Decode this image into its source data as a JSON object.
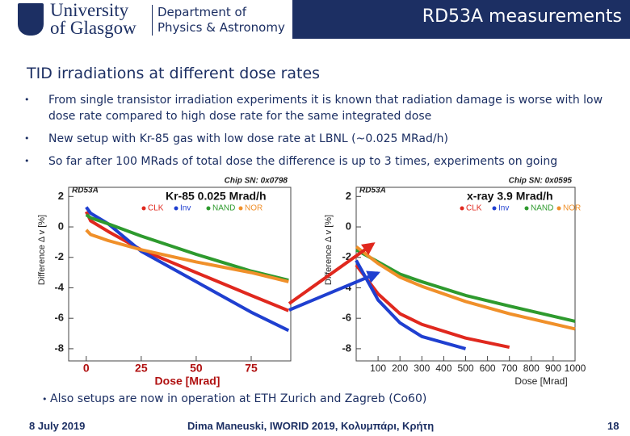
{
  "header": {
    "logo_line1": "University",
    "logo_line2": "of Glasgow",
    "department_line1": "Department of",
    "department_line2": "Physics & Astronomy",
    "title": "RD53A measurements"
  },
  "slide": {
    "title": "TID irradiations at different dose rates",
    "bullets": [
      "From single transistor irradiation experiments it is known that radiation damage is worse with low dose rate compared to high dose rate for the same integrated dose",
      "New setup with Kr-85 gas with low dose rate at LBNL (~0.025 MRad/h)",
      "So far after 100 MRads of total dose the difference is up to 3 times, experiments on going"
    ],
    "note": "Also setups are now in operation at ETH Zurich and Zagreb (Co60)"
  },
  "plots": [
    {
      "type": "line",
      "label": "RD53A",
      "chip": "Chip SN: 0x0798",
      "title": "Kr-85 0.025 Mrad/h",
      "ylabel": "Difference Δ v [%]",
      "xlabel": "Dose [Mrad]",
      "xlim": [
        -8,
        93
      ],
      "ylim": [
        -8.8,
        2.6
      ],
      "xticks": [
        0,
        25,
        50,
        75
      ],
      "yticks": [
        2,
        0,
        -2,
        -4,
        -6,
        -8
      ],
      "x": [
        0,
        2,
        10,
        25,
        50,
        75,
        92
      ],
      "series": [
        {
          "name": "CLK",
          "color": "#e0281e",
          "values": [
            1.0,
            0.4,
            -0.3,
            -1.5,
            -3.0,
            -4.5,
            -5.5
          ]
        },
        {
          "name": "Inv",
          "color": "#1f3fd0",
          "values": [
            1.3,
            0.9,
            0.2,
            -1.6,
            -3.6,
            -5.6,
            -6.8
          ]
        },
        {
          "name": "NAND",
          "color": "#2e9a2e",
          "values": [
            0.8,
            0.6,
            0.2,
            -0.6,
            -1.8,
            -2.9,
            -3.5
          ]
        },
        {
          "name": "NOR",
          "color": "#f0902a",
          "values": [
            -0.2,
            -0.5,
            -0.9,
            -1.5,
            -2.3,
            -3.0,
            -3.6
          ]
        }
      ]
    },
    {
      "type": "line",
      "label": "RD53A",
      "chip": "Chip SN: 0x0595",
      "title": "x-ray 3.9 Mrad/h",
      "ylabel": "Difference Δ v [%]",
      "xlabel": "Dose [Mrad]",
      "xlim": [
        0,
        1000
      ],
      "ylim": [
        -8.8,
        2.6
      ],
      "xticks": [
        100,
        200,
        300,
        400,
        500,
        600,
        700,
        800,
        900,
        1000
      ],
      "yticks": [
        2,
        0,
        -2,
        -4,
        -6,
        -8
      ],
      "x": [
        0,
        100,
        200,
        300,
        500,
        700,
        1000
      ],
      "series": [
        {
          "name": "CLK",
          "color": "#e0281e",
          "values": [
            -2.5,
            -4.4,
            -5.7,
            -6.4,
            -7.3,
            -7.9,
            null
          ]
        },
        {
          "name": "Inv",
          "color": "#1f3fd0",
          "values": [
            -2.2,
            -4.8,
            -6.3,
            -7.2,
            -8,
            null,
            null
          ]
        },
        {
          "name": "NAND",
          "color": "#2e9a2e",
          "values": [
            -1.5,
            -2.3,
            -3.1,
            -3.6,
            -4.5,
            -5.2,
            -6.2
          ]
        },
        {
          "name": "NOR",
          "color": "#f0902a",
          "values": [
            -1.3,
            -2.4,
            -3.3,
            -3.9,
            -4.9,
            -5.7,
            -6.7
          ]
        }
      ]
    }
  ],
  "footer": {
    "date": "8 July 2019",
    "author": "Dima Maneuski, IWORID 2019, Κολυμπάρι, Κρήτη",
    "page": 18
  }
}
